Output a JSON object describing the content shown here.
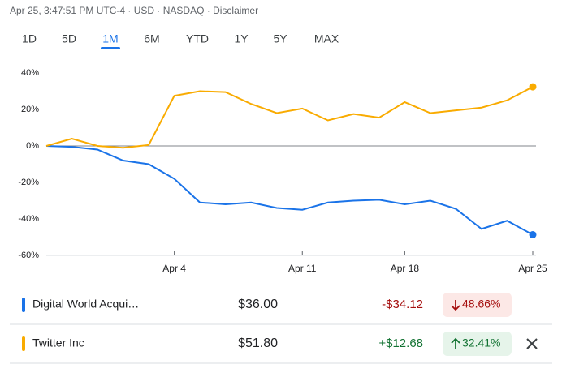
{
  "header": {
    "text": "Apr 25, 3:47:51 PM UTC-4 · USD · NASDAQ · Disclaimer"
  },
  "tabs": [
    "1D",
    "5D",
    "1M",
    "6M",
    "YTD",
    "1Y",
    "5Y",
    "MAX"
  ],
  "chart_data": {
    "type": "line",
    "categories": [
      null,
      null,
      null,
      null,
      null,
      "Apr 4",
      null,
      null,
      null,
      null,
      "Apr 11",
      null,
      null,
      null,
      "Apr 18",
      null,
      null,
      null,
      null,
      "Apr 25"
    ],
    "series": [
      {
        "name": "Digital World Acqui…",
        "color": "#1a73e8",
        "values": [
          0,
          -0.5,
          -2,
          -8,
          -10,
          -18,
          -31,
          -32,
          -31,
          -34,
          -35,
          -31,
          -30,
          -29.5,
          -32,
          -30,
          -34.5,
          -45.5,
          -41,
          -48.66
        ]
      },
      {
        "name": "Twitter Inc",
        "color": "#f9ab00",
        "values": [
          0,
          4,
          0,
          -1,
          0.5,
          27.5,
          30,
          29.5,
          23,
          18,
          20.5,
          14,
          17.5,
          15.5,
          24,
          18,
          19.5,
          21,
          25,
          32.41
        ]
      }
    ],
    "ylim": [
      -60,
      40
    ],
    "yticks": [
      {
        "value": 40,
        "label": "40%"
      },
      {
        "value": 20,
        "label": "20%"
      },
      {
        "value": 0,
        "label": "0%"
      },
      {
        "value": -20,
        "label": "-20%"
      },
      {
        "value": -40,
        "label": "-40%"
      },
      {
        "value": -60,
        "label": "-60%"
      }
    ],
    "grid": false
  },
  "table": {
    "rows": [
      {
        "price": "$36.00",
        "change": "-$34.12",
        "percent": "48.66%"
      },
      {
        "price": "$51.80",
        "change": "+$12.68",
        "percent": "32.41%"
      }
    ]
  }
}
